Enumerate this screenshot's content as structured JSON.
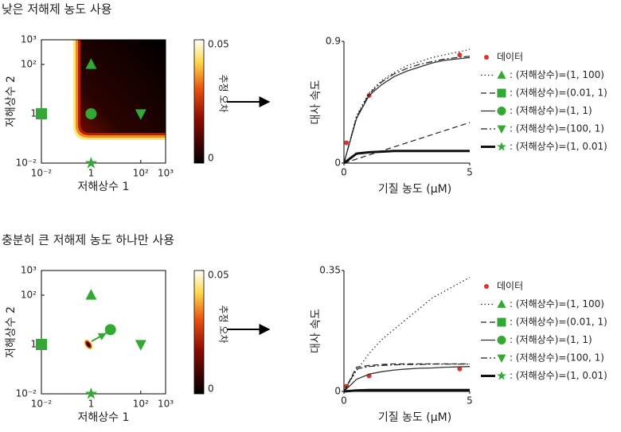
{
  "chart_data": [
    {
      "type": "heatmap",
      "title": "낮은 저해제 농도 사용",
      "xlabel": "저해상수 1",
      "ylabel": "저해상수 2",
      "xscale": "log",
      "yscale": "log",
      "xlim": [
        0.01,
        1000
      ],
      "ylim": [
        0.01,
        1000
      ],
      "xticks": [
        {
          "value": 0.01,
          "label": "10⁻²"
        },
        1,
        {
          "value": 100,
          "label": "10²"
        },
        {
          "value": 1000,
          "label": "10³"
        }
      ],
      "yticks": [
        {
          "value": 0.01,
          "label": "10⁻²"
        },
        1,
        {
          "value": 100,
          "label": "10²"
        },
        {
          "value": 1000,
          "label": "10³"
        }
      ],
      "colorbar": {
        "label": "추정 오차",
        "lim": [
          0,
          0.05
        ],
        "ticks": [
          0,
          0.05
        ]
      },
      "marker_color": "#34a835",
      "points": [
        {
          "marker": "triangle",
          "x": 1,
          "y": 100
        },
        {
          "marker": "square",
          "x": 0.01,
          "y": 1
        },
        {
          "marker": "circle",
          "x": 1,
          "y": 1
        },
        {
          "marker": "triangle-down",
          "x": 100,
          "y": 1
        },
        {
          "marker": "star",
          "x": 1,
          "y": 0.01
        }
      ]
    },
    {
      "type": "line",
      "xlabel": "기질 농도 (μM)",
      "ylabel": "대사 속도",
      "xlim": [
        0,
        5
      ],
      "ylim": [
        0,
        0.9
      ],
      "xticks": [
        0,
        5
      ],
      "yticks": [
        0,
        0.9
      ],
      "x": [
        0,
        0.5,
        1,
        1.5,
        2,
        2.5,
        3,
        3.5,
        4,
        4.5,
        5
      ],
      "marker_color": "#34a835",
      "series": [
        {
          "name": "데이터",
          "color": "#e0322a",
          "kind": "points",
          "x": [
            0.1,
            1,
            4.6
          ],
          "values": [
            0.15,
            0.5,
            0.8
          ]
        },
        {
          "name": ": (저해상수)=(1, 100)",
          "color": "#222222",
          "marker": "triangle",
          "dash": "1.5,3",
          "width": 1.2,
          "values": [
            0,
            0.35,
            0.52,
            0.61,
            0.67,
            0.72,
            0.75,
            0.78,
            0.8,
            0.82,
            0.84
          ]
        },
        {
          "name": ": (저해상수)=(0.01, 1)",
          "color": "#222222",
          "marker": "square",
          "dash": "7,4",
          "width": 1.2,
          "values": [
            0,
            0.03,
            0.06,
            0.09,
            0.12,
            0.15,
            0.18,
            0.21,
            0.24,
            0.27,
            0.3
          ]
        },
        {
          "name": ": (저해상수)=(1, 1)",
          "color": "#333333",
          "marker": "circle",
          "dash": "none",
          "width": 1.3,
          "values": [
            0,
            0.33,
            0.5,
            0.58,
            0.64,
            0.68,
            0.71,
            0.74,
            0.76,
            0.77,
            0.78
          ]
        },
        {
          "name": ": (저해상수)=(100, 1)",
          "color": "#222222",
          "marker": "triangle-down",
          "dash": "8,3,2,3",
          "width": 1.2,
          "values": [
            0,
            0.34,
            0.51,
            0.6,
            0.66,
            0.7,
            0.73,
            0.75,
            0.77,
            0.78,
            0.79
          ]
        },
        {
          "name": ": (저해상수)=(1, 0.01)",
          "color": "#111111",
          "marker": "star",
          "dash": "none",
          "width": 3,
          "values": [
            0,
            0.07,
            0.08,
            0.085,
            0.09,
            0.09,
            0.09,
            0.09,
            0.09,
            0.09,
            0.09
          ]
        }
      ]
    },
    {
      "type": "heatmap",
      "title": "충분히 큰 저해제 농도 하나만 사용",
      "xlabel": "저해상수 1",
      "ylabel": "저해상수 2",
      "xscale": "log",
      "yscale": "log",
      "xlim": [
        0.01,
        1000
      ],
      "ylim": [
        0.01,
        1000
      ],
      "xticks": [
        {
          "value": 0.01,
          "label": "10⁻²"
        },
        1,
        {
          "value": 100,
          "label": "10²"
        },
        {
          "value": 1000,
          "label": "10³"
        }
      ],
      "yticks": [
        {
          "value": 0.01,
          "label": "10⁻²"
        },
        1,
        {
          "value": 100,
          "label": "10²"
        },
        {
          "value": 1000,
          "label": "10³"
        }
      ],
      "colorbar": {
        "label": "추정 오차",
        "lim": [
          0,
          0.05
        ],
        "ticks": [
          0,
          0.05
        ]
      },
      "marker_color": "#34a835",
      "points": [
        {
          "marker": "triangle",
          "x": 1,
          "y": 100
        },
        {
          "marker": "square",
          "x": 0.01,
          "y": 1
        },
        {
          "marker": "circle",
          "x": 6,
          "y": 4
        },
        {
          "marker": "triangle-down",
          "x": 100,
          "y": 1
        },
        {
          "marker": "star",
          "x": 1,
          "y": 0.01
        }
      ]
    },
    {
      "type": "line",
      "xlabel": "기질 농도 (μM)",
      "ylabel": "대사 속도",
      "xlim": [
        0,
        5
      ],
      "ylim": [
        0,
        0.35
      ],
      "xticks": [
        0,
        5
      ],
      "yticks": [
        0,
        0.35
      ],
      "x": [
        0,
        0.5,
        1,
        1.5,
        2,
        2.5,
        3,
        3.5,
        4,
        4.5,
        5
      ],
      "marker_color": "#34a835",
      "series": [
        {
          "name": "데이터",
          "color": "#e0322a",
          "kind": "points",
          "x": [
            0.1,
            1,
            4.6
          ],
          "values": [
            0.015,
            0.045,
            0.065
          ]
        },
        {
          "name": ": (저해상수)=(1, 100)",
          "color": "#222222",
          "marker": "triangle",
          "dash": "1.5,3",
          "width": 1.2,
          "values": [
            0,
            0.06,
            0.11,
            0.15,
            0.18,
            0.21,
            0.24,
            0.27,
            0.29,
            0.31,
            0.33
          ]
        },
        {
          "name": ": (저해상수)=(0.01, 1)",
          "color": "#222222",
          "marker": "square",
          "dash": "7,4",
          "width": 1.2,
          "values": [
            0,
            0.07,
            0.075,
            0.078,
            0.08,
            0.08,
            0.08,
            0.08,
            0.08,
            0.08,
            0.08
          ]
        },
        {
          "name": ": (저해상수)=(1, 1)",
          "color": "#333333",
          "marker": "circle",
          "dash": "none",
          "width": 1.3,
          "values": [
            0,
            0.035,
            0.05,
            0.057,
            0.062,
            0.065,
            0.067,
            0.068,
            0.07,
            0.071,
            0.072
          ]
        },
        {
          "name": ": (저해상수)=(100, 1)",
          "color": "#222222",
          "marker": "triangle-down",
          "dash": "8,3,2,3",
          "width": 1.2,
          "values": [
            0,
            0.065,
            0.072,
            0.075,
            0.077,
            0.078,
            0.078,
            0.079,
            0.079,
            0.079,
            0.079
          ]
        },
        {
          "name": ": (저해상수)=(1, 0.01)",
          "color": "#111111",
          "marker": "star",
          "dash": "none",
          "width": 3,
          "values": [
            0,
            0.003,
            0.004,
            0.004,
            0.004,
            0.004,
            0.004,
            0.004,
            0.004,
            0.004,
            0.004
          ]
        }
      ]
    }
  ]
}
